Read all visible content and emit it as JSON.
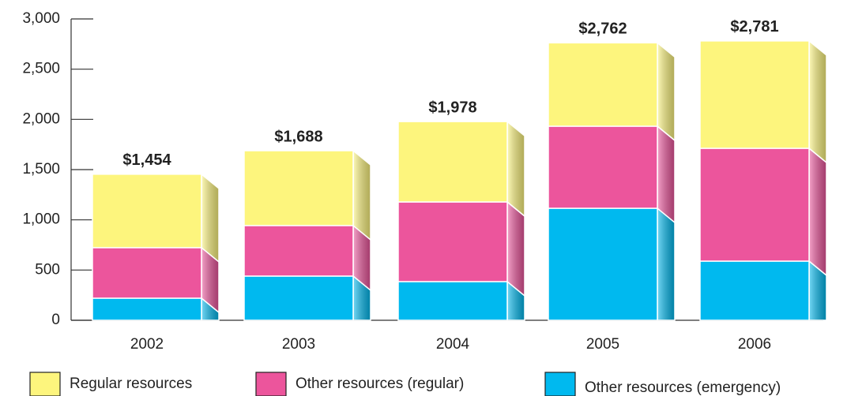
{
  "chart_data": {
    "type": "bar",
    "stacked": true,
    "categories": [
      "2002",
      "2003",
      "2004",
      "2005",
      "2006"
    ],
    "series": [
      {
        "name": "Other resources (emergency)",
        "color": "#00b9ef",
        "values": [
          220,
          440,
          385,
          1115,
          589
        ]
      },
      {
        "name": "Other resources (regular)",
        "color": "#ec559c",
        "values": [
          503,
          503,
          793,
          817,
          1123
        ]
      },
      {
        "name": "Regular resources",
        "color": "#fdf57d",
        "values": [
          731,
          745,
          800,
          830,
          1069
        ]
      }
    ],
    "totals": [
      1454,
      1688,
      1978,
      2762,
      2781
    ],
    "total_labels": [
      "$1,454",
      "$1,688",
      "$1,978",
      "$2,762",
      "$2,781"
    ],
    "ylim": [
      0,
      3000
    ],
    "yticks": [
      0,
      500,
      {
        "value": 1000,
        "label": "1,000"
      },
      {
        "value": 1500,
        "label": "1,500"
      },
      {
        "value": 2000,
        "label": "2,000"
      },
      {
        "value": 2500,
        "label": "2,500"
      },
      {
        "value": 3000,
        "label": "3,000"
      }
    ],
    "legend": "bottom"
  }
}
